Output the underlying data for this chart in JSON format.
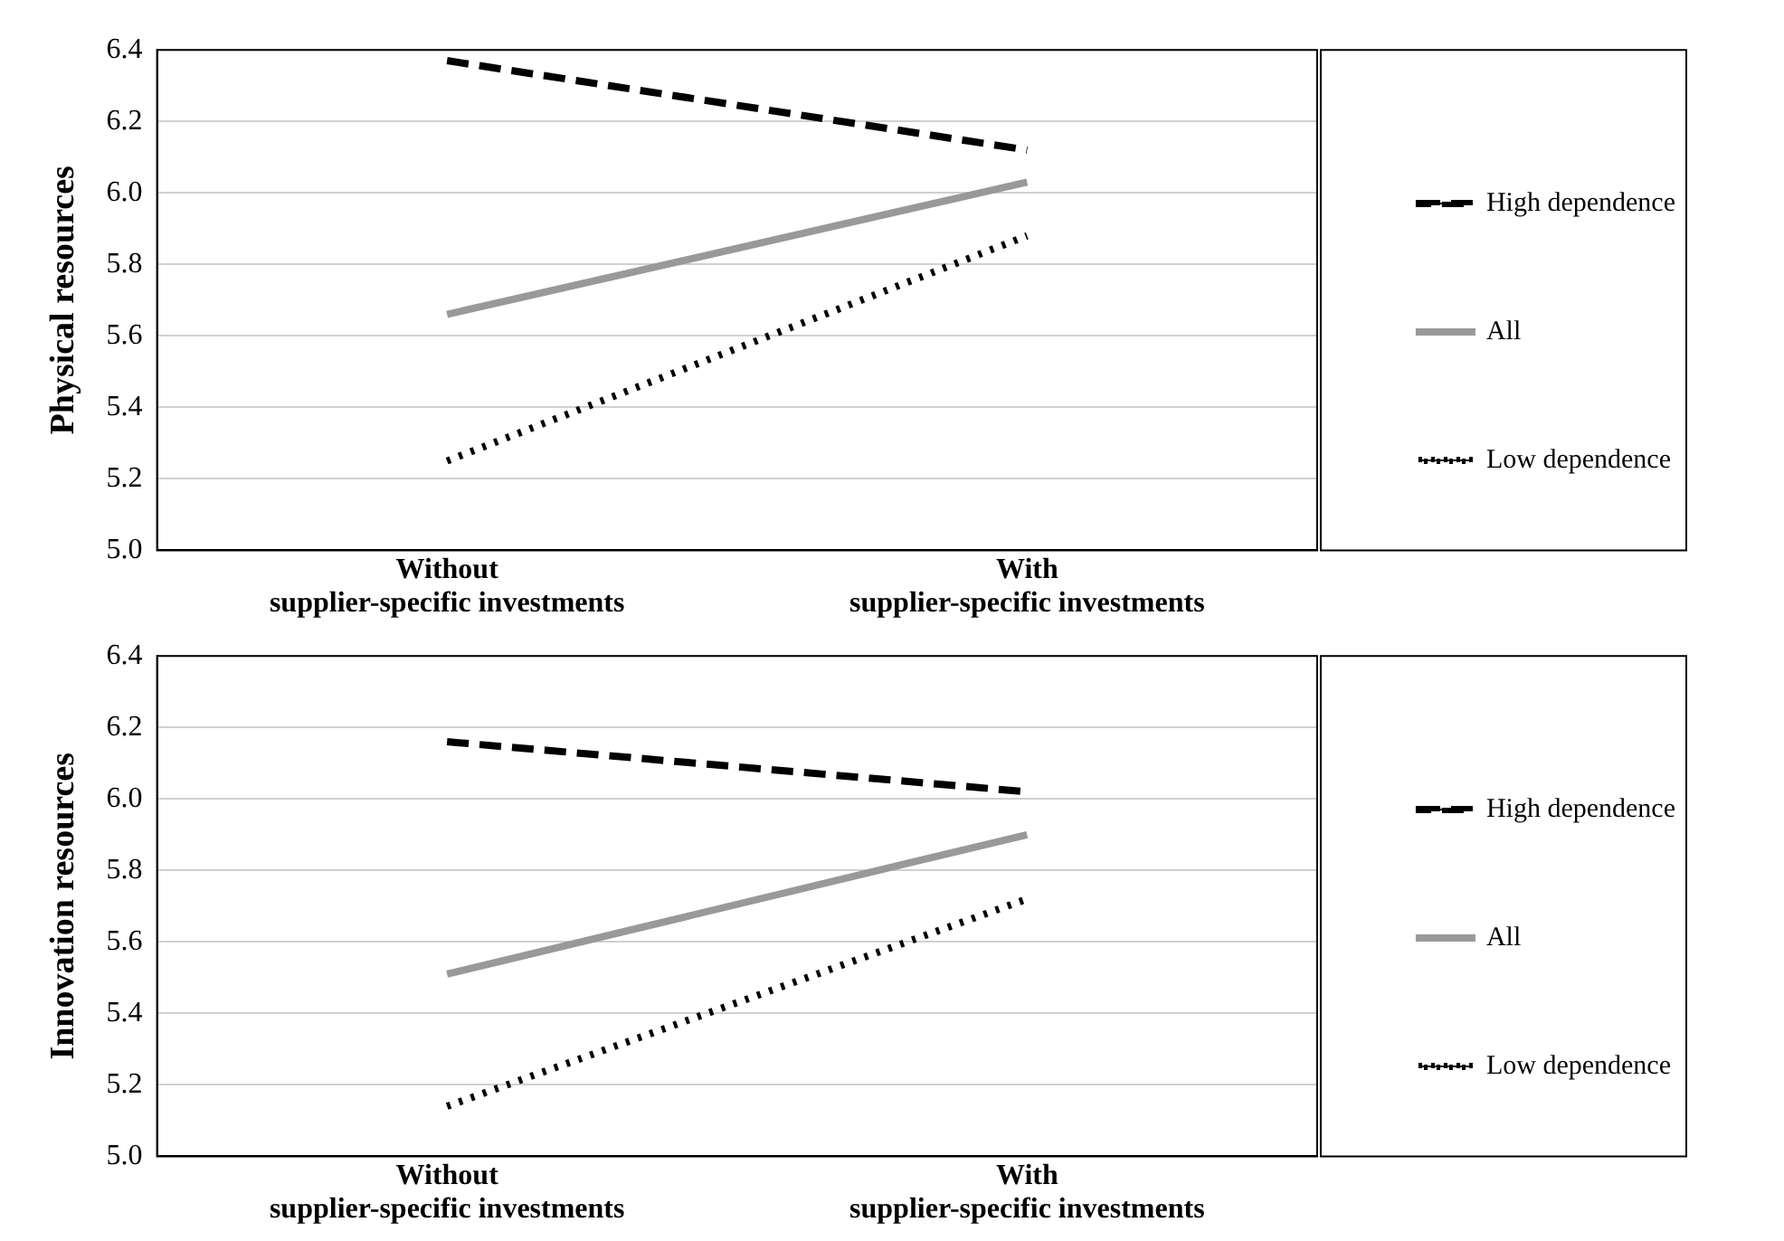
{
  "chart_data": [
    {
      "type": "line",
      "ylabel": "Physical resources",
      "categories": [
        "Without\nsupplier-specific investments",
        "With\nsupplier-specific investments"
      ],
      "ylim": [
        5.0,
        6.4
      ],
      "yticks": [
        {
          "value": 5.0,
          "label": "5.0"
        },
        {
          "value": 5.2,
          "label": "5.2"
        },
        {
          "value": 5.4,
          "label": "5.4"
        },
        {
          "value": 5.6,
          "label": "5.6"
        },
        {
          "value": 5.8,
          "label": "5.8"
        },
        {
          "value": 6.0,
          "label": "6.0"
        },
        {
          "value": 6.2,
          "label": "6.2"
        },
        {
          "value": 6.4,
          "label": "6.4"
        }
      ],
      "grid": "y",
      "legend": "right",
      "marker": "none",
      "series": [
        {
          "name": "High dependence",
          "color": "#000000",
          "line_style": "dashed",
          "values": [
            6.37,
            6.12
          ]
        },
        {
          "name": "All",
          "color": "#999999",
          "line_style": "solid",
          "values": [
            5.66,
            6.03
          ]
        },
        {
          "name": "Low dependence",
          "color": "#000000",
          "line_style": "dotted",
          "values": [
            5.25,
            5.88
          ]
        }
      ]
    },
    {
      "type": "line",
      "ylabel": "Innovation resources",
      "categories": [
        "Without\nsupplier-specific investments",
        "With\nsupplier-specific investments"
      ],
      "ylim": [
        5.0,
        6.4
      ],
      "yticks": [
        {
          "value": 5.0,
          "label": "5.0"
        },
        {
          "value": 5.2,
          "label": "5.2"
        },
        {
          "value": 5.4,
          "label": "5.4"
        },
        {
          "value": 5.6,
          "label": "5.6"
        },
        {
          "value": 5.8,
          "label": "5.8"
        },
        {
          "value": 6.0,
          "label": "6.0"
        },
        {
          "value": 6.2,
          "label": "6.2"
        },
        {
          "value": 6.4,
          "label": "6.4"
        }
      ],
      "grid": "y",
      "legend": "right",
      "marker": "none",
      "series": [
        {
          "name": "High dependence",
          "color": "#000000",
          "line_style": "dashed",
          "values": [
            6.16,
            6.02
          ]
        },
        {
          "name": "All",
          "color": "#999999",
          "line_style": "solid",
          "values": [
            5.51,
            5.9
          ]
        },
        {
          "name": "Low dependence",
          "color": "#000000",
          "line_style": "dotted",
          "values": [
            5.14,
            5.72
          ]
        }
      ]
    }
  ]
}
